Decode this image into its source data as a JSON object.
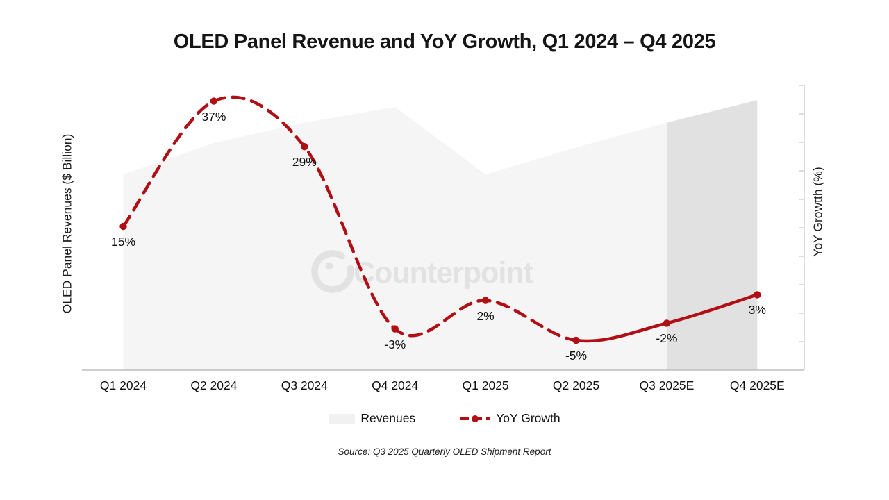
{
  "title": "OLED Panel Revenue and YoY Growth, Q1 2024 – Q4 2025",
  "axes": {
    "left_label": "OLED Panel Revenues ($ Billion)",
    "right_label": "YoY Growtth (%)"
  },
  "legend": {
    "revenues_label": "Revenues",
    "growth_label": "YoY Growth"
  },
  "watermark": {
    "text": "Counterpoint"
  },
  "source": "Source: Q3 2025 Quarterly OLED Shipment Report",
  "chart_data": {
    "type": "combo",
    "categories": [
      "Q1 2024",
      "Q2 2024",
      "Q3 2024",
      "Q4 2024",
      "Q1 2025",
      "Q2 2025",
      "Q3 2025E",
      "Q4 2025E"
    ],
    "series": [
      {
        "name": "Revenues",
        "type": "area",
        "unit": "$ Billion (estimated; value axis unlabeled)",
        "values": [
          8.7,
          10.1,
          11.0,
          11.7,
          8.7,
          9.9,
          11.0,
          12.0
        ]
      },
      {
        "name": "YoY Growth",
        "type": "line",
        "unit": "%",
        "values": [
          15,
          37,
          29,
          -3,
          2,
          -5,
          -2,
          3
        ],
        "labels": [
          "15%",
          "37%",
          "29%",
          "-3%",
          "2%",
          "-5%",
          "-2%",
          "3%"
        ],
        "style": "dashed through Q2 2025, solid for Q3 2025E–Q4 2025E",
        "solid_from_index": 5
      }
    ],
    "title": "OLED Panel Revenue and YoY Growth, Q1 2024 – Q4 2025",
    "xlabel": "",
    "ylabel_left": "OLED Panel Revenues ($ Billion)",
    "ylabel_right": "YoY Growtth (%)",
    "right_axis_range": [
      -10,
      40
    ],
    "right_axis_tick_step": 5,
    "grid": false,
    "legend_position": "bottom",
    "forecast_highlight": {
      "from_index": 6,
      "to_index": 7,
      "note": "darker shaded band over Q3 2025E–Q4 2025E"
    }
  },
  "colors": {
    "line_red": "#b00f15",
    "area_fill": "#f5f5f5",
    "forecast_fill": "#e1e1e1",
    "axis_line": "#bdbdbd",
    "tick_line": "#c4c4c4",
    "watermark_gray": "#e2e2e2",
    "text": "#111111"
  }
}
